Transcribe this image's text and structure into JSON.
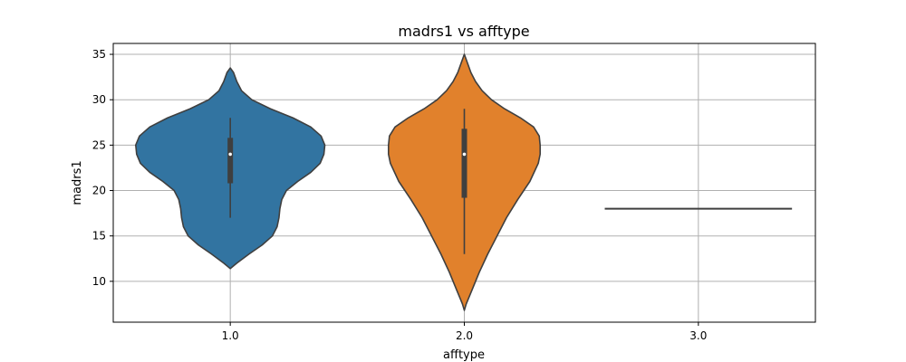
{
  "chart_data": {
    "type": "violin",
    "title": "madrs1 vs afftype",
    "xlabel": "afftype",
    "ylabel": "madrs1",
    "categories": [
      "1.0",
      "2.0",
      "3.0"
    ],
    "ylim": [
      5.5,
      36.2
    ],
    "yticks": [
      10,
      15,
      20,
      25,
      30,
      35
    ],
    "grid": true,
    "violins": [
      {
        "category": "1.0",
        "color": "#3274a1",
        "min": 11.4,
        "max": 33.5,
        "q1": 20.8,
        "median": 24.0,
        "q3": 25.8,
        "whisker_low": 17.0,
        "whisker_high": 28.0,
        "density": [
          [
            11.4,
            0.0
          ],
          [
            12.0,
            0.07
          ],
          [
            13.0,
            0.2
          ],
          [
            14.0,
            0.34
          ],
          [
            15.0,
            0.45
          ],
          [
            16.0,
            0.5
          ],
          [
            17.0,
            0.52
          ],
          [
            18.0,
            0.53
          ],
          [
            19.0,
            0.55
          ],
          [
            20.0,
            0.6
          ],
          [
            21.0,
            0.72
          ],
          [
            22.0,
            0.86
          ],
          [
            23.0,
            0.96
          ],
          [
            24.0,
            1.0
          ],
          [
            25.0,
            1.01
          ],
          [
            26.0,
            0.97
          ],
          [
            27.0,
            0.86
          ],
          [
            28.0,
            0.67
          ],
          [
            29.0,
            0.43
          ],
          [
            30.0,
            0.23
          ],
          [
            31.0,
            0.12
          ],
          [
            32.0,
            0.07
          ],
          [
            33.0,
            0.035
          ],
          [
            33.5,
            0.0
          ]
        ]
      },
      {
        "category": "2.0",
        "color": "#e1812c",
        "min": 6.8,
        "max": 35.0,
        "q1": 19.2,
        "median": 24.0,
        "q3": 26.8,
        "whisker_low": 13.0,
        "whisker_high": 29.0,
        "density": [
          [
            6.8,
            0.0
          ],
          [
            7.5,
            0.02
          ],
          [
            9.0,
            0.08
          ],
          [
            11.0,
            0.16
          ],
          [
            13.0,
            0.25
          ],
          [
            15.0,
            0.35
          ],
          [
            17.0,
            0.45
          ],
          [
            19.0,
            0.57
          ],
          [
            21.0,
            0.7
          ],
          [
            23.0,
            0.79
          ],
          [
            24.0,
            0.81
          ],
          [
            25.0,
            0.81
          ],
          [
            26.0,
            0.8
          ],
          [
            27.0,
            0.74
          ],
          [
            28.0,
            0.6
          ],
          [
            29.0,
            0.43
          ],
          [
            30.0,
            0.29
          ],
          [
            31.0,
            0.19
          ],
          [
            32.0,
            0.12
          ],
          [
            33.0,
            0.07
          ],
          [
            34.0,
            0.035
          ],
          [
            35.0,
            0.0
          ]
        ]
      },
      {
        "category": "3.0",
        "color": "#3a923a",
        "single_value": 18.0
      }
    ]
  }
}
